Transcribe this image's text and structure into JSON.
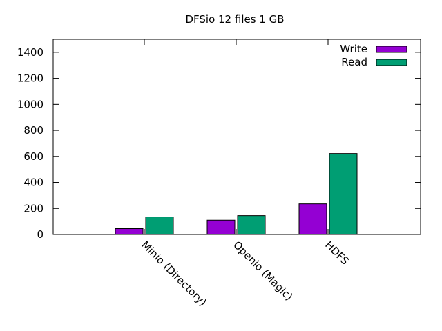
{
  "chart_data": {
    "type": "bar",
    "title": "DFSio 12 files 1 GB",
    "xlabel": "",
    "ylabel": "",
    "categories": [
      "Minio (Directory)",
      "Openio (Magic)",
      "HDFS"
    ],
    "series": [
      {
        "name": "Write",
        "color": "#9400d3",
        "values": [
          45,
          110,
          235
        ]
      },
      {
        "name": "Read",
        "color": "#009e73",
        "values": [
          135,
          145,
          622
        ]
      }
    ],
    "ylim": [
      0,
      1500
    ],
    "yticks": [
      0,
      200,
      400,
      600,
      800,
      1000,
      1200,
      1400
    ],
    "grid": false,
    "legend_position": "top-right"
  }
}
